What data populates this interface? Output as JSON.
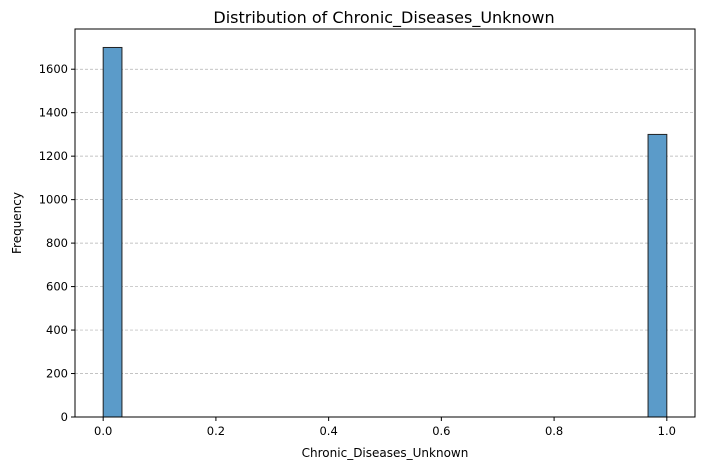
{
  "chart_data": {
    "type": "bar",
    "title": "Distribution of Chronic_Diseases_Unknown",
    "xlabel": "Chronic_Diseases_Unknown",
    "ylabel": "Frequency",
    "xlim": [
      -0.05,
      1.05
    ],
    "ylim": [
      0,
      1785
    ],
    "xticks": [
      0.0,
      0.2,
      0.4,
      0.6,
      0.8,
      1.0
    ],
    "xtick_labels": [
      "0.0",
      "0.2",
      "0.4",
      "0.6",
      "0.8",
      "1.0"
    ],
    "yticks": [
      0,
      200,
      400,
      600,
      800,
      1000,
      1200,
      1400,
      1600
    ],
    "ytick_labels": [
      "0",
      "200",
      "400",
      "600",
      "800",
      "1000",
      "1200",
      "1400",
      "1600"
    ],
    "grid": {
      "axis": "y",
      "style": "dashed"
    },
    "bin_width": 0.0333,
    "bins": [
      {
        "x0": 0.0,
        "x1": 0.0333,
        "count": 1700
      },
      {
        "x0": 0.9667,
        "x1": 1.0,
        "count": 1300
      }
    ],
    "colors": {
      "bar_fill": "#5b9bc9",
      "bar_edge": "#222222",
      "grid": "#b0b0b0"
    }
  }
}
